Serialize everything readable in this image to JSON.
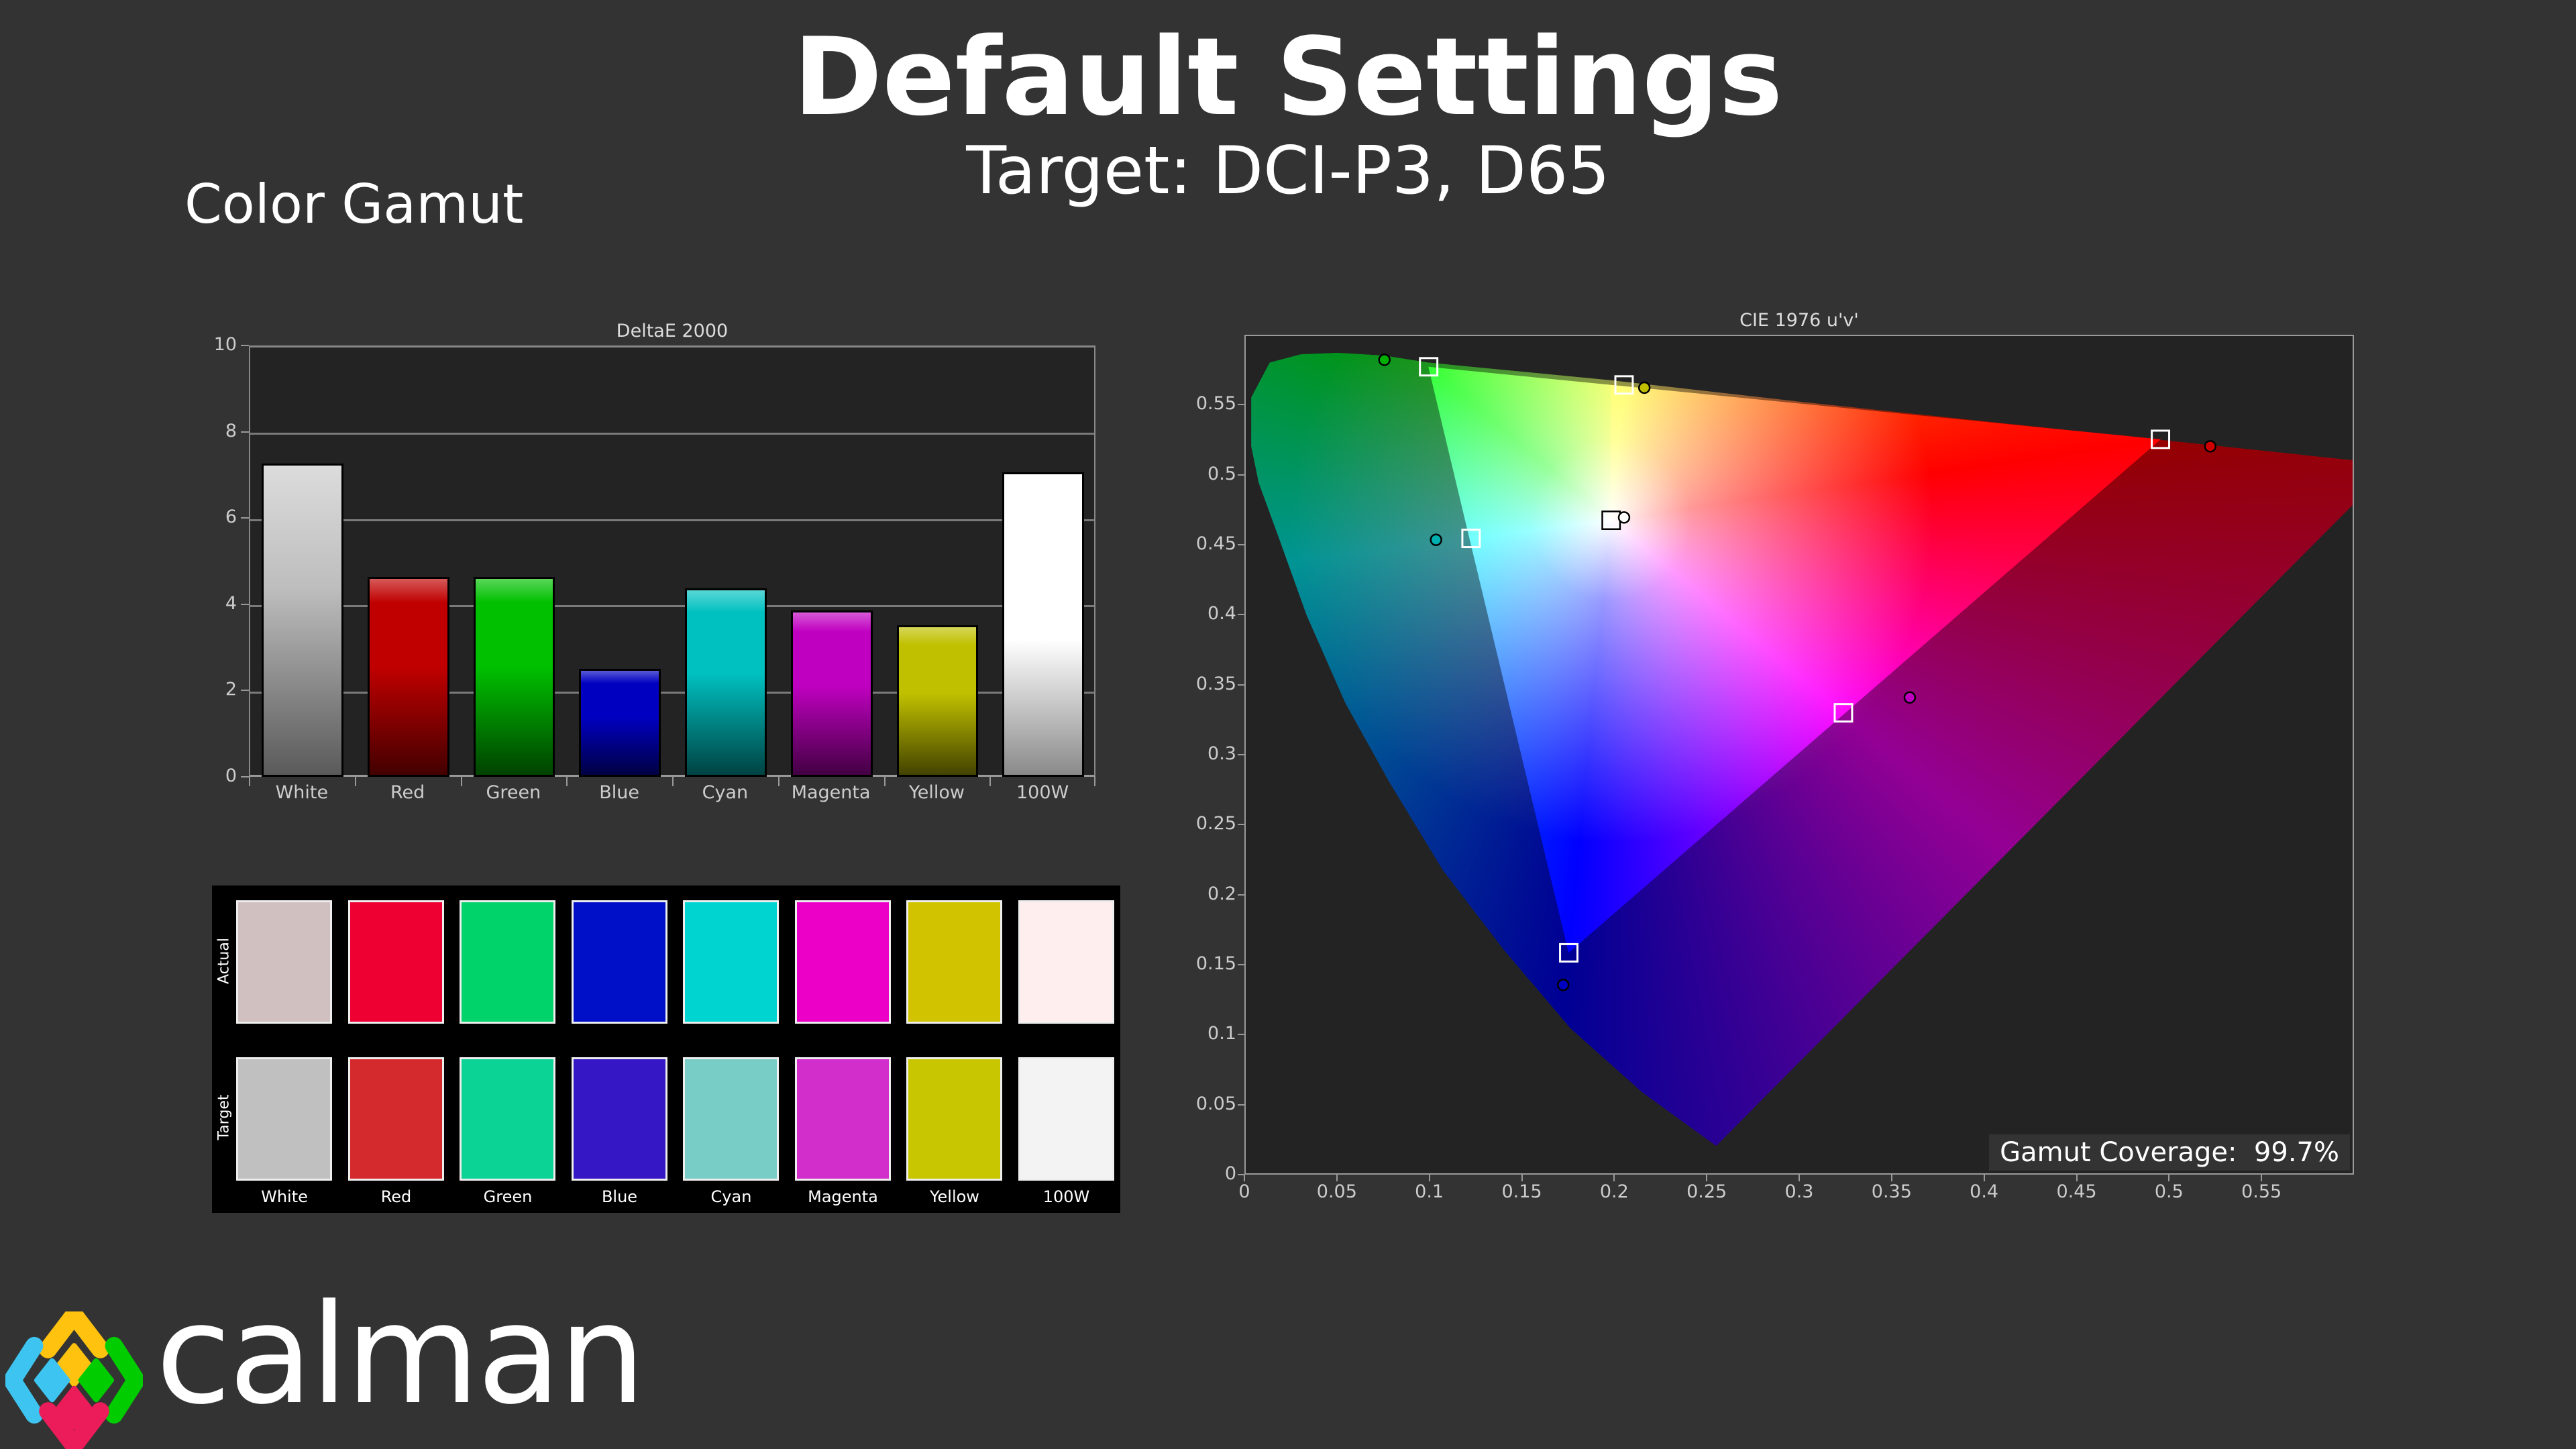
{
  "header": {
    "title": "Default Settings",
    "subtitle": "Target: DCI-P3, D65",
    "section": "Color Gamut"
  },
  "chart_data": [
    {
      "type": "bar",
      "title": "DeltaE 2000",
      "categories": [
        "White",
        "Red",
        "Green",
        "Blue",
        "Cyan",
        "Magenta",
        "Yellow",
        "100W"
      ],
      "values": [
        7.27,
        4.64,
        4.64,
        2.51,
        4.37,
        3.86,
        3.52,
        7.06
      ],
      "colors": [
        "#c0c0c0",
        "#c00000",
        "#00c000",
        "#0000c0",
        "#00c0c0",
        "#c000c0",
        "#c0c000",
        "#ffffff"
      ],
      "ylim": [
        0,
        10
      ],
      "yticks": [
        "0",
        "2",
        "4",
        "6",
        "8",
        "10"
      ],
      "grid": true
    },
    {
      "type": "scatter",
      "title": "CIE 1976 u'v'",
      "xlim": [
        0,
        0.6
      ],
      "ylim": [
        0,
        0.6
      ],
      "xticks": [
        "0",
        "0.05",
        "0.1",
        "0.15",
        "0.2",
        "0.25",
        "0.3",
        "0.35",
        "0.4",
        "0.45",
        "0.5",
        "0.55"
      ],
      "yticks": [
        "0",
        "0.05",
        "0.1",
        "0.15",
        "0.2",
        "0.25",
        "0.3",
        "0.35",
        "0.4",
        "0.45",
        "0.5",
        "0.55"
      ],
      "targets": [
        {
          "name": "Red",
          "u": 0.496,
          "v": 0.526
        },
        {
          "name": "Green",
          "u": 0.099,
          "v": 0.578
        },
        {
          "name": "Blue",
          "u": 0.175,
          "v": 0.158
        },
        {
          "name": "Cyan",
          "u": 0.122,
          "v": 0.455
        },
        {
          "name": "Magenta",
          "u": 0.324,
          "v": 0.33
        },
        {
          "name": "Yellow",
          "u": 0.205,
          "v": 0.565
        },
        {
          "name": "White",
          "u": 0.198,
          "v": 0.468
        }
      ],
      "measured": [
        {
          "name": "Red",
          "u": 0.523,
          "v": 0.521,
          "color": "#d00000"
        },
        {
          "name": "Green",
          "u": 0.075,
          "v": 0.583,
          "color": "#00b000"
        },
        {
          "name": "Blue",
          "u": 0.172,
          "v": 0.135,
          "color": "#0000c0"
        },
        {
          "name": "Cyan",
          "u": 0.103,
          "v": 0.454,
          "color": "#00b0b0"
        },
        {
          "name": "Magenta",
          "u": 0.36,
          "v": 0.341,
          "color": "#c000c0"
        },
        {
          "name": "Yellow",
          "u": 0.216,
          "v": 0.563,
          "color": "#c0c000"
        },
        {
          "name": "White",
          "u": 0.205,
          "v": 0.47,
          "color": "#ffffff"
        }
      ],
      "gamut_coverage": "Gamut Coverage:  99.7%"
    }
  ],
  "swatches": {
    "row_labels": [
      "Actual",
      "Target"
    ],
    "labels": [
      "White",
      "Red",
      "Green",
      "Blue",
      "Cyan",
      "Magenta",
      "Yellow",
      "100W"
    ],
    "actual": [
      "#d0c0c0",
      "#ef0033",
      "#00d36a",
      "#0010c8",
      "#00d4d0",
      "#ec00c8",
      "#d2c300",
      "#ffeeee"
    ],
    "target": [
      "#c0c0c0",
      "#d52a2d",
      "#0bd396",
      "#3617c6",
      "#78cdc6",
      "#d22ecb",
      "#c8c600",
      "#f3f3f3"
    ]
  },
  "logo": {
    "text": "calman"
  }
}
